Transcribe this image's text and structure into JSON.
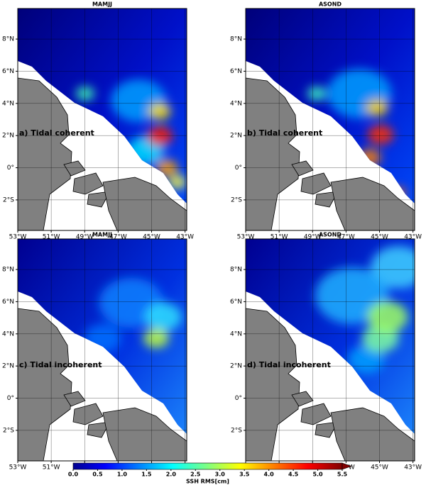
{
  "panels": [
    {
      "title": "MAMJJ",
      "label": "a) Tidal coherent"
    },
    {
      "title": "ASOND",
      "label": "b) Tidal coherent"
    },
    {
      "title": "MAMJJ",
      "label": "c) Tidal incoherent"
    },
    {
      "title": "ASOND",
      "label": "d) Tidal incoherent"
    }
  ],
  "xlim": [
    -53,
    -42.9
  ],
  "xticks": [
    {
      "value": -53,
      "label": "53°W"
    },
    {
      "value": -51,
      "label": "51°W"
    },
    {
      "value": -49,
      "label": "49°W"
    },
    {
      "value": -47,
      "label": "47°W"
    },
    {
      "value": -45,
      "label": "45°W"
    },
    {
      "value": -43,
      "label": "43°W"
    }
  ],
  "ylim": [
    -3.9,
    9.9
  ],
  "yticks": [
    {
      "value": -2,
      "label": "2°S"
    },
    {
      "value": 0,
      "label": "0°"
    },
    {
      "value": 2,
      "label": "2°N"
    },
    {
      "value": 4,
      "label": "4°N"
    },
    {
      "value": 6,
      "label": "6°N"
    },
    {
      "value": 8,
      "label": "8°N"
    }
  ],
  "colorbar": {
    "label": "SSH RMS[cm]",
    "lim": [
      0,
      5.5
    ],
    "ticks": [
      {
        "value": 0,
        "label": "0.0"
      },
      {
        "value": 0.5,
        "label": "0.5"
      },
      {
        "value": 1,
        "label": "1.0"
      },
      {
        "value": 1.5,
        "label": "1.5"
      },
      {
        "value": 2,
        "label": "2.0"
      },
      {
        "value": 2.5,
        "label": "2.5"
      },
      {
        "value": 3,
        "label": "3.0"
      },
      {
        "value": 3.5,
        "label": "3.5"
      },
      {
        "value": 4,
        "label": "4.0"
      },
      {
        "value": 4.5,
        "label": "4.5"
      },
      {
        "value": 5,
        "label": "5.0"
      },
      {
        "value": 5.5,
        "label": "5.5"
      }
    ]
  }
}
